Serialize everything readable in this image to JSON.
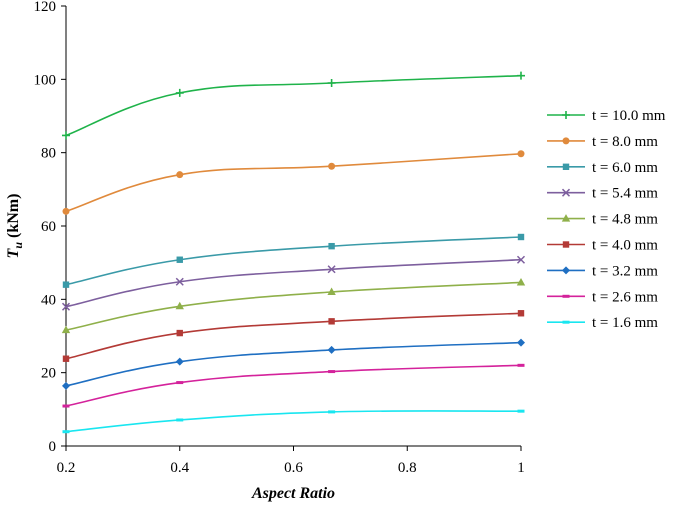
{
  "chart_data": {
    "type": "line",
    "title": "",
    "xlabel": "Aspect Ratio",
    "ylabel_main": "T",
    "ylabel_sub": "u",
    "ylabel_unit": " (kNm)",
    "xlim": [
      0.2,
      1
    ],
    "ylim": [
      0,
      120
    ],
    "xticks": [
      0.2,
      0.4,
      0.6,
      0.8,
      1
    ],
    "xtick_labels": [
      "0.2",
      "0.4",
      "0.6",
      "0.8",
      "1"
    ],
    "yticks": [
      0,
      20,
      40,
      60,
      80,
      100,
      120
    ],
    "ytick_labels": [
      "0",
      "20",
      "40",
      "60",
      "80",
      "100",
      "120"
    ],
    "grid": false,
    "legend_position": "right",
    "x": [
      0.2,
      0.4,
      0.667,
      1.0
    ],
    "series": [
      {
        "name": "t = 10.0 mm",
        "values": [
          84.7,
          96.3,
          99.0,
          101.0
        ],
        "color": "#1fb34a",
        "marker": "plus"
      },
      {
        "name": "t = 8.0 mm",
        "values": [
          64.0,
          74.0,
          76.3,
          79.7
        ],
        "color": "#e08a3c",
        "marker": "circle"
      },
      {
        "name": "t = 6.0 mm",
        "values": [
          44.0,
          50.8,
          54.5,
          57.0
        ],
        "color": "#3a9aa8",
        "marker": "square"
      },
      {
        "name": "t = 5.4 mm",
        "values": [
          38.0,
          44.8,
          48.2,
          50.8
        ],
        "color": "#7d5f9e",
        "marker": "x"
      },
      {
        "name": "t = 4.8 mm",
        "values": [
          31.6,
          38.1,
          42.0,
          44.6
        ],
        "color": "#8fb04a",
        "marker": "triangle"
      },
      {
        "name": "t = 4.0 mm",
        "values": [
          23.8,
          30.8,
          34.0,
          36.2
        ],
        "color": "#b33a36",
        "marker": "square"
      },
      {
        "name": "t = 3.2 mm",
        "values": [
          16.4,
          23.0,
          26.2,
          28.2
        ],
        "color": "#1f6fc2",
        "marker": "diamond"
      },
      {
        "name": "t = 2.6 mm",
        "values": [
          10.9,
          17.3,
          20.3,
          22.0
        ],
        "color": "#d4229b",
        "marker": "dash"
      },
      {
        "name": "t = 1.6 mm",
        "values": [
          3.9,
          7.1,
          9.3,
          9.5
        ],
        "color": "#19e6f0",
        "marker": "dash"
      }
    ]
  }
}
